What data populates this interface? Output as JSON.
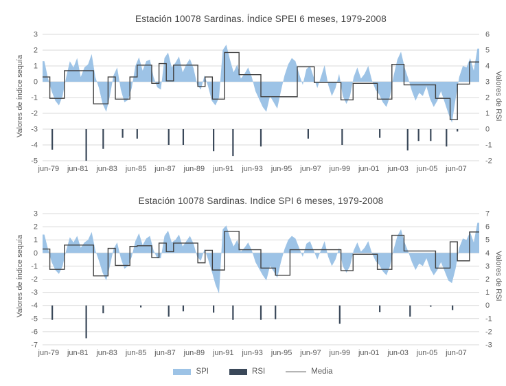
{
  "page": {
    "background": "#FFFFFF"
  },
  "colors": {
    "area_fill": "#9DC3E6",
    "rsi_bar": "#3A4859",
    "media_line": "#404040",
    "gridline": "#D9D9D9",
    "tick_text": "#595959",
    "title_text": "#404040"
  },
  "legend": {
    "items": [
      {
        "label": "SPI",
        "type": "area",
        "color": "#9DC3E6"
      },
      {
        "label": "RSI",
        "type": "bar",
        "color": "#3A4859"
      },
      {
        "label": "Media",
        "type": "line",
        "color": "#404040"
      }
    ]
  },
  "chart_data": [
    {
      "type": "area+bar+step-line combo",
      "title": "Estación 10078 Sardinas. Índice SPEI 6 meses, 1979-2008",
      "left_axis": {
        "label": "Valores de índice sequía",
        "min": -5,
        "max": 3,
        "ticks": [
          3,
          2,
          1,
          0,
          -1,
          -2,
          -3,
          -4,
          -5
        ]
      },
      "right_axis": {
        "label": "Valores de RSI",
        "min": -2,
        "max": 6,
        "ticks": [
          6,
          5,
          4,
          3,
          2,
          1,
          0,
          -1,
          -2
        ],
        "offset_vs_left": -3
      },
      "x_ticks": [
        "jun-79",
        "jun-81",
        "jun-83",
        "jun-85",
        "jun-87",
        "jun-89",
        "jun-91",
        "jun-93",
        "jun-95",
        "jun-97",
        "jun-99",
        "jun-01",
        "jun-03",
        "jun-05",
        "jun-07"
      ],
      "x_range_months": 360,
      "grid": true,
      "series": {
        "area": {
          "name": "SPI",
          "quarterly_values": [
            1.3,
            0.2,
            -0.6,
            -1.2,
            -1.5,
            -0.9,
            0.3,
            1.3,
            0.9,
            1.5,
            0.3,
            0.9,
            1.1,
            1.75,
            0.3,
            -0.4,
            -1.4,
            -1.9,
            -0.9,
            0.4,
            0.9,
            -0.5,
            -1.3,
            -1.15,
            -0.4,
            1.0,
            1.55,
            0.7,
            1.3,
            1.4,
            0.3,
            -0.35,
            -0.5,
            1.5,
            1.85,
            0.9,
            1.2,
            1.6,
            0.6,
            1.1,
            1.45,
            0.85,
            -0.2,
            -0.5,
            0.4,
            -0.3,
            -1.2,
            -1.5,
            -1.0,
            2.0,
            2.35,
            1.4,
            0.6,
            1.1,
            0.2,
            0.5,
            0.9,
            0.3,
            -0.6,
            -1.1,
            -1.6,
            -1.9,
            -0.9,
            -1.3,
            -1.7,
            -0.6,
            0.4,
            1.1,
            1.5,
            1.3,
            0.5,
            -0.2,
            0.8,
            1.0,
            0.3,
            -0.4,
            0.3,
            1.05,
            -0.2,
            -0.9,
            -0.4,
            0.5,
            -0.9,
            -1.4,
            -0.9,
            0.3,
            0.9,
            0.2,
            0.5,
            1.0,
            0.1,
            -0.5,
            -0.8,
            -1.3,
            -1.6,
            -0.9,
            0.4,
            1.4,
            1.9,
            0.9,
            0.2,
            -0.6,
            -1.2,
            -0.7,
            -0.9,
            -0.3,
            -1.1,
            -1.6,
            -1.2,
            -0.6,
            -1.3,
            -2.0,
            -2.6,
            -1.1,
            0.3,
            1.0,
            0.9,
            1.5,
            0.7,
            2.1
          ]
        },
        "media_steps": {
          "name": "Media",
          "segments_months_value": [
            [
              6,
              0.3
            ],
            [
              12,
              -1.05
            ],
            [
              24,
              0.7
            ],
            [
              12,
              -1.4
            ],
            [
              6,
              0.3
            ],
            [
              12,
              -1.1
            ],
            [
              6,
              0.3
            ],
            [
              12,
              1.05
            ],
            [
              6,
              -0.1
            ],
            [
              6,
              1.15
            ],
            [
              6,
              0.05
            ],
            [
              20,
              1.05
            ],
            [
              6,
              -0.3
            ],
            [
              6,
              0.3
            ],
            [
              10,
              -1.1
            ],
            [
              12,
              1.85
            ],
            [
              18,
              0.45
            ],
            [
              30,
              -0.95
            ],
            [
              14,
              0.95
            ],
            [
              22,
              -0.05
            ],
            [
              10,
              -1.15
            ],
            [
              20,
              -0.1
            ],
            [
              12,
              -1.1
            ],
            [
              10,
              1.1
            ],
            [
              26,
              -0.2
            ],
            [
              12,
              -1.05
            ],
            [
              6,
              -2.4
            ],
            [
              10,
              -0.15
            ],
            [
              8,
              1.25
            ]
          ]
        },
        "rsi_bars": {
          "name": "RSI",
          "zero_at_left_value": -3,
          "points_month_value": [
            [
              8,
              -1.3
            ],
            [
              36,
              -2.0
            ],
            [
              50,
              -1.25
            ],
            [
              66,
              -0.55
            ],
            [
              78,
              -0.6
            ],
            [
              104,
              -1.0
            ],
            [
              116,
              -1.0
            ],
            [
              141,
              -1.4
            ],
            [
              157,
              -1.7
            ],
            [
              180,
              -1.1
            ],
            [
              219,
              -0.6
            ],
            [
              247,
              -1.0
            ],
            [
              278,
              -0.55
            ],
            [
              301,
              -1.35
            ],
            [
              310,
              -0.75
            ],
            [
              320,
              -0.75
            ],
            [
              333,
              -1.1
            ],
            [
              342,
              -0.15
            ]
          ]
        }
      }
    },
    {
      "type": "area+bar+step-line combo",
      "title": "Estación 10078 Sardinas. Indice SPI 6 meses, 1979-2008",
      "left_axis": {
        "label": "Valores de índice sequía",
        "min": -7,
        "max": 3,
        "ticks": [
          3,
          2,
          1,
          0,
          -1,
          -2,
          -3,
          -4,
          -5,
          -6,
          -7
        ]
      },
      "right_axis": {
        "label": "Valores de RSI",
        "min": -3,
        "max": 7,
        "ticks": [
          7,
          6,
          5,
          4,
          3,
          2,
          1,
          0,
          -1,
          -2,
          -3
        ],
        "offset_vs_left": -4
      },
      "x_ticks": [
        "jun-79",
        "jun-81",
        "jun-83",
        "jun-85",
        "jun-87",
        "jun-89",
        "jun-91",
        "jun-93",
        "jun-95",
        "jun-97",
        "jun-99",
        "jun-01",
        "jun-03",
        "jun-05",
        "jun-07"
      ],
      "x_range_months": 360,
      "grid": true,
      "series": {
        "area": {
          "name": "SPI",
          "quarterly_values": [
            1.4,
            0.3,
            -0.7,
            -1.3,
            -1.6,
            -1.0,
            0.2,
            1.2,
            0.8,
            1.3,
            0.4,
            0.8,
            1.0,
            1.6,
            0.2,
            -0.6,
            -1.5,
            -2.1,
            -1.0,
            0.3,
            0.8,
            -0.4,
            -1.2,
            -1.0,
            -0.3,
            0.9,
            1.5,
            0.6,
            1.1,
            1.3,
            0.2,
            -0.4,
            -0.4,
            1.3,
            1.7,
            0.8,
            1.0,
            1.4,
            0.5,
            0.9,
            1.3,
            0.7,
            -0.3,
            -0.6,
            0.3,
            -0.5,
            -1.4,
            -2.4,
            -3.1,
            1.8,
            2.1,
            1.2,
            0.5,
            1.0,
            0.1,
            0.4,
            0.8,
            0.2,
            -0.7,
            -1.2,
            -1.7,
            -2.1,
            -1.0,
            -1.4,
            -1.9,
            -0.7,
            0.3,
            1.0,
            1.3,
            1.1,
            0.4,
            -0.3,
            0.7,
            0.9,
            0.2,
            -0.5,
            0.2,
            0.9,
            -0.3,
            -1.0,
            -0.5,
            0.4,
            -1.0,
            -1.5,
            -1.0,
            0.2,
            0.8,
            0.1,
            0.4,
            0.9,
            0.0,
            -0.6,
            -0.9,
            -1.4,
            -1.7,
            -1.0,
            0.3,
            1.3,
            1.8,
            0.8,
            0.1,
            -0.7,
            -1.3,
            -0.8,
            -1.0,
            -0.4,
            -1.2,
            -1.7,
            -1.3,
            -0.7,
            -1.4,
            -2.1,
            -2.3,
            -1.2,
            0.4,
            1.1,
            1.0,
            1.6,
            0.8,
            2.3
          ]
        },
        "media_steps": {
          "name": "Media",
          "segments_months_value": [
            [
              6,
              0.3
            ],
            [
              12,
              -1.25
            ],
            [
              24,
              0.6
            ],
            [
              12,
              -1.75
            ],
            [
              6,
              0.35
            ],
            [
              12,
              -0.95
            ],
            [
              6,
              0.5
            ],
            [
              12,
              0.55
            ],
            [
              6,
              -0.35
            ],
            [
              6,
              0.75
            ],
            [
              6,
              0.1
            ],
            [
              20,
              0.75
            ],
            [
              6,
              -0.75
            ],
            [
              6,
              0.2
            ],
            [
              10,
              -1.3
            ],
            [
              12,
              1.65
            ],
            [
              18,
              0.25
            ],
            [
              12,
              -1.15
            ],
            [
              12,
              -1.7
            ],
            [
              42,
              0.25
            ],
            [
              10,
              -1.35
            ],
            [
              20,
              -0.1
            ],
            [
              12,
              -1.25
            ],
            [
              10,
              1.35
            ],
            [
              26,
              0.15
            ],
            [
              12,
              -1.15
            ],
            [
              6,
              0.85
            ],
            [
              10,
              -0.6
            ],
            [
              8,
              1.6
            ]
          ]
        },
        "rsi_bars": {
          "name": "RSI",
          "zero_at_left_value": -4,
          "points_month_value": [
            [
              8,
              -1.1
            ],
            [
              36,
              -2.5
            ],
            [
              50,
              -0.6
            ],
            [
              81,
              -0.15
            ],
            [
              104,
              -0.85
            ],
            [
              116,
              -0.45
            ],
            [
              141,
              -0.55
            ],
            [
              157,
              -1.1
            ],
            [
              180,
              -1.1
            ],
            [
              192,
              -1.05
            ],
            [
              245,
              -1.4
            ],
            [
              278,
              -0.5
            ],
            [
              303,
              -0.85
            ],
            [
              320,
              -0.1
            ],
            [
              338,
              -0.35
            ]
          ]
        }
      }
    }
  ]
}
